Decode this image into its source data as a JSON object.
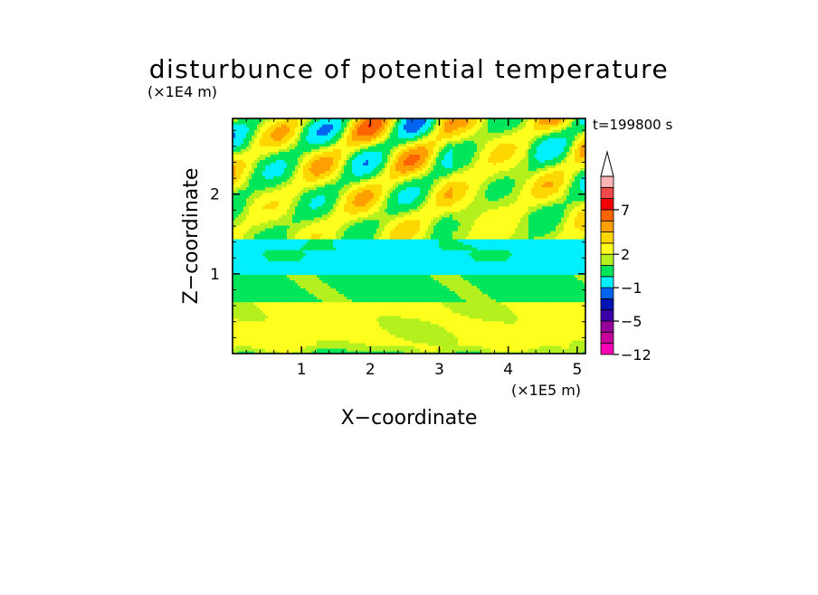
{
  "chart_data": {
    "type": "heatmap",
    "title": "disturbunce of potential temperature",
    "xlabel": "X−coordinate",
    "ylabel": "Z−coordinate",
    "x_unit": "(×1E5 m)",
    "y_unit": "(×1E4 m)",
    "time_label": "t=199800 s",
    "xlim": [
      0,
      5.12
    ],
    "ylim": [
      0,
      2.95
    ],
    "x_ticks": [
      1,
      2,
      3,
      4,
      5
    ],
    "x_tick_labels": [
      "1",
      "2",
      "3",
      "4",
      "5"
    ],
    "y_ticks": [
      1,
      2
    ],
    "y_tick_labels": [
      "1",
      "2"
    ],
    "colorbar": {
      "labeled_values": [
        "−12",
        "−5",
        "−1",
        "2",
        "7"
      ],
      "colors": [
        "#ff00b4",
        "#c8009b",
        "#96009b",
        "#3c00aa",
        "#0014b4",
        "#0064f0",
        "#00f0ff",
        "#00e65a",
        "#b4f01e",
        "#ffff1e",
        "#ffd700",
        "#ffa000",
        "#ff6400",
        "#f50000",
        "#f04b4b",
        "#ffb4b4",
        "#ffffff"
      ],
      "label_bands": [
        0,
        3,
        6,
        9,
        13
      ]
    }
  }
}
